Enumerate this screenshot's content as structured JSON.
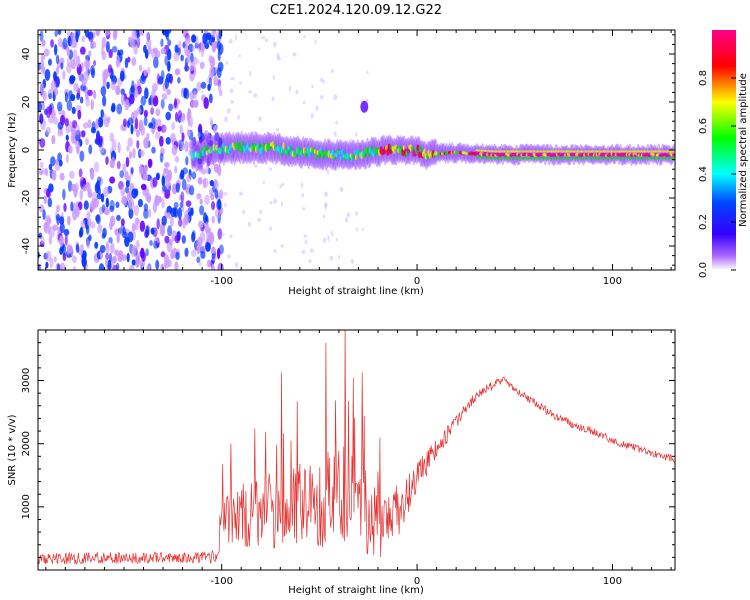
{
  "figure": {
    "title": "C2E1.2024.120.09.12.G22"
  },
  "chart_data": [
    {
      "type": "heatmap",
      "title": "C2E1.2024.120.09.12.G22",
      "xlabel": "Height of straight line (km)",
      "ylabel": "Frequency (Hz)",
      "xlim": [
        -194,
        132
      ],
      "ylim": [
        -50,
        50
      ],
      "x_ticks": [
        -100,
        0,
        100
      ],
      "y_ticks": [
        -40,
        -20,
        0,
        20,
        40
      ],
      "colorbar": {
        "label": "Normalized spectral amplitude",
        "range": [
          0.0,
          1.0
        ],
        "ticks": [
          "0.0",
          "0.2",
          "0.4",
          "0.6",
          "0.8"
        ],
        "colors": [
          "#ffffff",
          "#8800ff",
          "#0000ff",
          "#00ffff",
          "#00ff00",
          "#ffff00",
          "#ff0000",
          "#ff00aa"
        ]
      },
      "features": {
        "noise_region_height_range": [
          -194,
          -115
        ],
        "signal_band_height_range": [
          -115,
          132
        ],
        "signal_center_frequency_hz": [
          [
            -110,
            0
          ],
          [
            -90,
            1
          ],
          [
            -75,
            1
          ],
          [
            -60,
            -1
          ],
          [
            -45,
            -2
          ],
          [
            -30,
            -2
          ],
          [
            -15,
            0
          ],
          [
            0,
            0
          ],
          [
            4,
            -2
          ],
          [
            20,
            -1
          ],
          [
            40,
            -2
          ],
          [
            60,
            -2
          ],
          [
            80,
            -2
          ],
          [
            100,
            -2
          ],
          [
            132,
            -2
          ]
        ],
        "isolated_blob": {
          "height_km": -27,
          "frequency_hz": 18
        }
      }
    },
    {
      "type": "line",
      "xlabel": "Height of straight line (km)",
      "ylabel": "SNR (10 * v/v)",
      "xlim": [
        -194,
        132
      ],
      "ylim": [
        0,
        3800
      ],
      "x_ticks": [
        -100,
        0,
        100
      ],
      "y_ticks": [
        1000,
        2000,
        3000
      ],
      "series": [
        {
          "color": "#e83030",
          "x": [
            -194,
            -150,
            -120,
            -103,
            -100,
            -90,
            -80,
            -70,
            -60,
            -50,
            -40,
            -30,
            -20,
            -10,
            0,
            10,
            20,
            30,
            40,
            45,
            50,
            60,
            70,
            80,
            90,
            100,
            110,
            120,
            132
          ],
          "y": [
            180,
            190,
            200,
            210,
            750,
            850,
            950,
            900,
            1050,
            1000,
            1300,
            1050,
            700,
            900,
            1500,
            1900,
            2350,
            2750,
            2950,
            3000,
            2850,
            2650,
            2450,
            2300,
            2200,
            2050,
            1950,
            1850,
            1750
          ],
          "spread": [
            90,
            90,
            90,
            100,
            350,
            500,
            600,
            650,
            700,
            700,
            800,
            750,
            550,
            450,
            250,
            170,
            110,
            80,
            70,
            60,
            60,
            60,
            60,
            60,
            60,
            60,
            60,
            60,
            60
          ]
        }
      ]
    }
  ]
}
